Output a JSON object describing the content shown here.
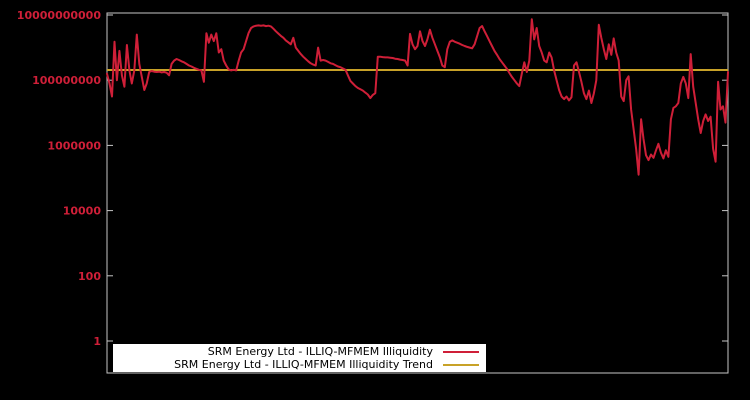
{
  "colors": {
    "background": "#000000",
    "series": "#cf1f38",
    "trend": "#c8a228",
    "plot_border": "#c6c6c6",
    "tick_label": "#cf1f38",
    "legend_bg": "#ffffff",
    "legend_text": "#000000"
  },
  "legend": {
    "position": "bottom-center-inside",
    "items": [
      {
        "label": "SRM Energy Ltd - ILLIQ-MFMEM Illiquidity",
        "series": "illiquidity"
      },
      {
        "label": "SRM Energy Ltd - ILLIQ-MFMEM Illiquidity Trend",
        "series": "trend"
      }
    ]
  },
  "chart_data": {
    "type": "line",
    "title": "",
    "xlabel": "",
    "ylabel": "",
    "yscale": "log",
    "ylim": [
      0.1,
      11000000000
    ],
    "grid": false,
    "x_tick_labels": [],
    "y_ticks": [
      {
        "value": 1,
        "label": "1"
      },
      {
        "value": 100,
        "label": "100"
      },
      {
        "value": 10000,
        "label": "10000"
      },
      {
        "value": 1000000,
        "label": "1000000"
      },
      {
        "value": 100000000,
        "label": "100000000"
      },
      {
        "value": 10000000000,
        "label": "10000000000"
      }
    ],
    "series": [
      {
        "name": "SRM Energy Ltd - ILLIQ-MFMEM Illiquidity",
        "type": "line",
        "values": [
          158000000.0,
          79400000.0,
          31600000.0,
          1510000000.0,
          100000000.0,
          794000000.0,
          141000000.0,
          63100000.0,
          1200000000.0,
          200000000.0,
          79400000.0,
          200000000.0,
          2510000000.0,
          316000000.0,
          126000000.0,
          50100000.0,
          79400000.0,
          178000000.0,
          191000000.0,
          182000000.0,
          178000000.0,
          182000000.0,
          174000000.0,
          178000000.0,
          170000000.0,
          141000000.0,
          316000000.0,
          398000000.0,
          447000000.0,
          417000000.0,
          380000000.0,
          355000000.0,
          316000000.0,
          282000000.0,
          263000000.0,
          240000000.0,
          224000000.0,
          209000000.0,
          200000000.0,
          89100000.0,
          2750000000.0,
          1410000000.0,
          2510000000.0,
          1580000000.0,
          2750000000.0,
          708000000.0,
          891000000.0,
          398000000.0,
          282000000.0,
          214000000.0,
          200000000.0,
          209000000.0,
          200000000.0,
          398000000.0,
          708000000.0,
          891000000.0,
          1580000000.0,
          2820000000.0,
          3980000000.0,
          4470000000.0,
          4680000000.0,
          4790000000.0,
          4680000000.0,
          4790000000.0,
          4570000000.0,
          4680000000.0,
          4470000000.0,
          3800000000.0,
          3160000000.0,
          2690000000.0,
          2290000000.0,
          2000000000.0,
          1660000000.0,
          1450000000.0,
          1260000000.0,
          2000000000.0,
          1000000000.0,
          794000000.0,
          631000000.0,
          525000000.0,
          447000000.0,
          380000000.0,
          331000000.0,
          302000000.0,
          282000000.0,
          1000000000.0,
          398000000.0,
          417000000.0,
          398000000.0,
          363000000.0,
          331000000.0,
          316000000.0,
          288000000.0,
          263000000.0,
          251000000.0,
          229000000.0,
          209000000.0,
          141000000.0,
          95500000.0,
          79400000.0,
          66100000.0,
          57500000.0,
          52500000.0,
          47900000.0,
          41700000.0,
          36300000.0,
          28200000.0,
          35500000.0,
          39800000.0,
          525000000.0,
          525000000.0,
          513000000.0,
          501000000.0,
          501000000.0,
          490000000.0,
          479000000.0,
          457000000.0,
          447000000.0,
          427000000.0,
          417000000.0,
          398000000.0,
          282000000.0,
          2630000000.0,
          1260000000.0,
          891000000.0,
          1120000000.0,
          3160000000.0,
          1580000000.0,
          1120000000.0,
          1780000000.0,
          3550000000.0,
          2000000000.0,
          1260000000.0,
          794000000.0,
          501000000.0,
          282000000.0,
          251000000.0,
          891000000.0,
          1510000000.0,
          1660000000.0,
          1510000000.0,
          1410000000.0,
          1320000000.0,
          1200000000.0,
          1120000000.0,
          1050000000.0,
          1000000000.0,
          955000000.0,
          1260000000.0,
          2240000000.0,
          3980000000.0,
          4570000000.0,
          3160000000.0,
          2240000000.0,
          1580000000.0,
          1120000000.0,
          794000000.0,
          603000000.0,
          447000000.0,
          355000000.0,
          282000000.0,
          224000000.0,
          166000000.0,
          126000000.0,
          100000000.0,
          79400000.0,
          66100000.0,
          158000000.0,
          355000000.0,
          178000000.0,
          398000000.0,
          7410000000.0,
          1780000000.0,
          3980000000.0,
          1120000000.0,
          708000000.0,
          398000000.0,
          355000000.0,
          708000000.0,
          501000000.0,
          200000000.0,
          100000000.0,
          50100000.0,
          31600000.0,
          26300000.0,
          31600000.0,
          24000000.0,
          30200000.0,
          282000000.0,
          355000000.0,
          178000000.0,
          89100000.0,
          39800000.0,
          26300000.0,
          47900000.0,
          20000000.0,
          39800000.0,
          100000000.0,
          5010000000.0,
          2000000000.0,
          891000000.0,
          447000000.0,
          1260000000.0,
          603000000.0,
          1910000000.0,
          708000000.0,
          398000000.0,
          31600000.0,
          22900000.0,
          100000000.0,
          132000000.0,
          12600000.0,
          3160000.0,
          794000.0,
          126000.0,
          6310000.0,
          1580000.0,
          501000.0,
          355000.0,
          525000.0,
          417000.0,
          708000.0,
          1120000.0,
          603000.0,
          398000.0,
          708000.0,
          447000.0,
          6310000.0,
          14100000.0,
          15800000.0,
          20000000.0,
          79400000.0,
          126000000.0,
          79400000.0,
          28200000.0,
          631000000.0,
          63100000.0,
          20000000.0,
          6310000.0,
          2400000.0,
          5620000.0,
          8910000.0,
          5620000.0,
          7590000.0,
          794000.0,
          316000.0,
          89100000.0,
          12600000.0,
          15800000.0,
          5010000.0,
          178000000.0
        ]
      },
      {
        "name": "SRM Energy Ltd - ILLIQ-MFMEM Illiquidity Trend",
        "type": "constant-line",
        "constant": 205000000.0
      }
    ]
  }
}
